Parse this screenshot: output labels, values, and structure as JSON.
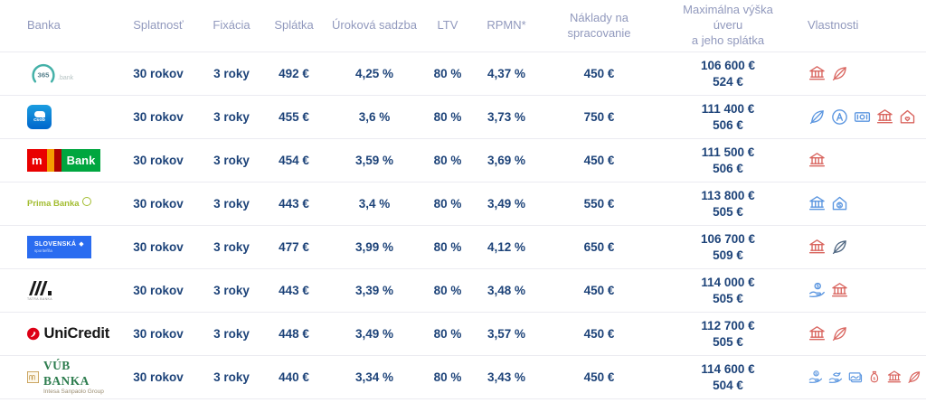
{
  "colors": {
    "icon_red": "#d9655f",
    "icon_blue": "#5b96e0",
    "icon_navy": "#4d6580",
    "header_text": "#9199bd",
    "value_text": "#1d4379",
    "csob_blue": "#0066cc",
    "mbank_red": "#e90000",
    "mbank_green": "#00a63f",
    "prima_green": "#a3bd31",
    "slsp_blue": "#2a6cf0",
    "tatra_black": "#1a1a1a",
    "unicredit_red": "#dd0016",
    "vub_green": "#2e7d4f",
    "b365_teal": "#44b1a8"
  },
  "table": {
    "headers": [
      "Banka",
      "Splatnosť",
      "Fixácia",
      "Splátka",
      "Úroková sadzba",
      "LTV",
      "RPMN*",
      "Náklady na spracovanie",
      "Maximálna výška\núveru\na jeho splátka",
      "Vlastnosti"
    ],
    "rows": [
      {
        "bank": "365.bank",
        "logo": {
          "main": "365",
          "suffix": ".bank"
        },
        "splatnost": "30 rokov",
        "fixacia": "3 roky",
        "splatka": "492 €",
        "urokova_sadzba": "4,25 %",
        "ltv": "80 %",
        "rpmn": "4,37 %",
        "naklady": "450 €",
        "max_vyska": "106 600 €",
        "max_splatka": "524 €",
        "icons": [
          {
            "name": "bank",
            "color": "red"
          },
          {
            "name": "leaf",
            "color": "red"
          }
        ]
      },
      {
        "bank": "ČSOB",
        "logo": {
          "main": "csob"
        },
        "splatnost": "30 rokov",
        "fixacia": "3 roky",
        "splatka": "455 €",
        "urokova_sadzba": "3,6 %",
        "ltv": "80 %",
        "rpmn": "3,73 %",
        "naklady": "750 €",
        "max_vyska": "111 400 €",
        "max_splatka": "506 €",
        "icons": [
          {
            "name": "leaf",
            "color": "blue"
          },
          {
            "name": "circle-a",
            "color": "blue"
          },
          {
            "name": "banknote",
            "color": "blue"
          },
          {
            "name": "bank",
            "color": "red"
          },
          {
            "name": "house-heart",
            "color": "red"
          }
        ]
      },
      {
        "bank": "mBank",
        "logo": {
          "m": "m",
          "bank": "Bank"
        },
        "splatnost": "30 rokov",
        "fixacia": "3 roky",
        "splatka": "454 €",
        "urokova_sadzba": "3,59 %",
        "ltv": "80 %",
        "rpmn": "3,69 %",
        "naklady": "450 €",
        "max_vyska": "111 500 €",
        "max_splatka": "506 €",
        "icons": [
          {
            "name": "bank",
            "color": "red"
          }
        ]
      },
      {
        "bank": "Prima Banka",
        "logo": {
          "main": "Prima Banka"
        },
        "splatnost": "30 rokov",
        "fixacia": "3 roky",
        "splatka": "443 €",
        "urokova_sadzba": "3,4 %",
        "ltv": "80 %",
        "rpmn": "3,49 %",
        "naklady": "550 €",
        "max_vyska": "113 800 €",
        "max_splatka": "505 €",
        "icons": [
          {
            "name": "bank",
            "color": "blue"
          },
          {
            "name": "house-dollar",
            "color": "blue"
          }
        ]
      },
      {
        "bank": "Slovenská sporiteľňa",
        "logo": {
          "main": "SLOVENSKÁ",
          "sub": "sporiteľňa"
        },
        "splatnost": "30 rokov",
        "fixacia": "3 roky",
        "splatka": "477 €",
        "urokova_sadzba": "3,99 %",
        "ltv": "80 %",
        "rpmn": "4,12 %",
        "naklady": "650 €",
        "max_vyska": "106 700 €",
        "max_splatka": "509 €",
        "icons": [
          {
            "name": "bank",
            "color": "red"
          },
          {
            "name": "leaf",
            "color": "navy"
          }
        ]
      },
      {
        "bank": "Tatra banka",
        "logo": {
          "sub": "TATRA BANKA"
        },
        "splatnost": "30 rokov",
        "fixacia": "3 roky",
        "splatka": "443 €",
        "urokova_sadzba": "3,39 %",
        "ltv": "80 %",
        "rpmn": "3,48 %",
        "naklady": "450 €",
        "max_vyska": "114 000 €",
        "max_splatka": "505 €",
        "icons": [
          {
            "name": "hand-coin",
            "color": "blue"
          },
          {
            "name": "bank",
            "color": "red"
          }
        ]
      },
      {
        "bank": "UniCredit",
        "logo": {
          "main": "UniCredit"
        },
        "splatnost": "30 rokov",
        "fixacia": "3 roky",
        "splatka": "448 €",
        "urokova_sadzba": "3,49 %",
        "ltv": "80 %",
        "rpmn": "3,57 %",
        "naklady": "450 €",
        "max_vyska": "112 700 €",
        "max_splatka": "505 €",
        "icons": [
          {
            "name": "bank",
            "color": "red"
          },
          {
            "name": "leaf",
            "color": "red"
          }
        ]
      },
      {
        "bank": "VÚB Banka",
        "logo": {
          "main": "VÚB BANKA",
          "sub": "Intesa Sanpaolo Group"
        },
        "splatnost": "30 rokov",
        "fixacia": "3 roky",
        "splatka": "440 €",
        "urokova_sadzba": "3,34 %",
        "ltv": "80 %",
        "rpmn": "3,43 %",
        "naklady": "450 €",
        "max_vyska": "114 600 €",
        "max_splatka": "504 €",
        "icons": [
          {
            "name": "hand-coin",
            "color": "blue"
          },
          {
            "name": "hand-bird",
            "color": "blue"
          },
          {
            "name": "banknotes",
            "color": "blue"
          },
          {
            "name": "money-bag",
            "color": "red"
          },
          {
            "name": "bank",
            "color": "red"
          },
          {
            "name": "leaf",
            "color": "red"
          }
        ]
      }
    ]
  }
}
